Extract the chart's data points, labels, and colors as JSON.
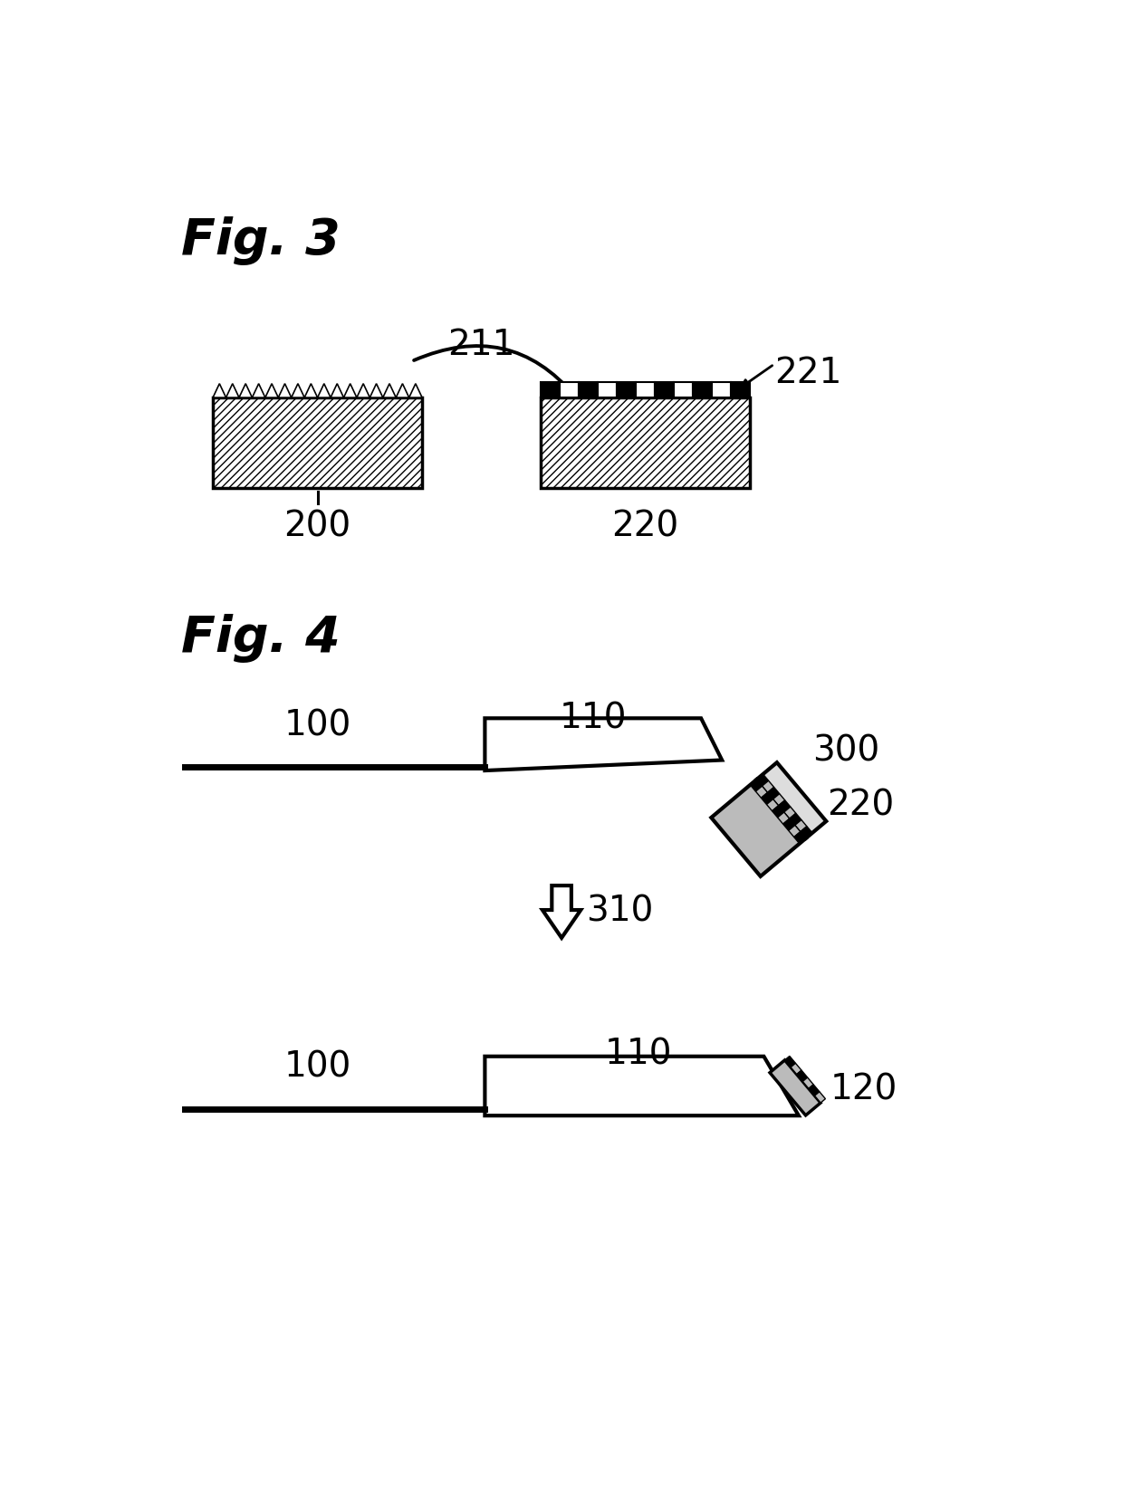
{
  "bg_color": "#ffffff",
  "fig3_label": "Fig. 3",
  "fig4_label": "Fig. 4",
  "label_200": "200",
  "label_211": "211",
  "label_220_fig3": "220",
  "label_221": "221",
  "label_100_top": "100",
  "label_110_top": "110",
  "label_300": "300",
  "label_220_fig4": "220",
  "label_310": "310",
  "label_100_bot": "100",
  "label_110_bot": "110",
  "label_120": "120",
  "black": "#000000",
  "gray_light": "#bbbbbb",
  "gray_med": "#999999"
}
